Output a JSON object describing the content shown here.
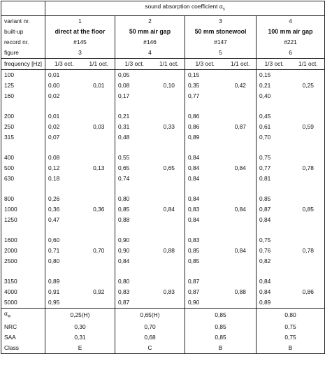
{
  "header": {
    "title_main": "sound absorption coefficient α",
    "title_sub": "s",
    "rows": [
      {
        "label": "variant nr.",
        "values": [
          "1",
          "2",
          "3",
          "4"
        ]
      },
      {
        "label": "built-up",
        "values": [
          "direct  at the floor",
          "50 mm air gap",
          "50 mm stonewool",
          "100 mm air gap"
        ]
      },
      {
        "label": "record nr.",
        "values": [
          "#145",
          "#146",
          "#147",
          "#221"
        ]
      },
      {
        "label": "figure",
        "values": [
          "3",
          "4",
          "5",
          "6"
        ]
      }
    ],
    "freq_label": "frequency [Hz]",
    "col_third": "1/3 oct.",
    "col_one": "1/1 oct."
  },
  "groups": [
    {
      "freqs": [
        "100",
        "125",
        "160"
      ],
      "third": [
        [
          "0,01",
          "0,00",
          "0,02"
        ],
        [
          "0,05",
          "0,08",
          "0,17"
        ],
        [
          "0,15",
          "0,35",
          "0,77"
        ],
        [
          "0,15",
          "0,21",
          "0,40"
        ]
      ],
      "one": [
        "0,01",
        "0,10",
        "0,42",
        "0,25"
      ]
    },
    {
      "freqs": [
        "200",
        "250",
        "315"
      ],
      "third": [
        [
          "0,01",
          "0,02",
          "0,07"
        ],
        [
          "0,21",
          "0,31",
          "0,48"
        ],
        [
          "0,86",
          "0,86",
          "0,89"
        ],
        [
          "0,45",
          "0,61",
          "0,70"
        ]
      ],
      "one": [
        "0,03",
        "0,33",
        "0,87",
        "0,59"
      ]
    },
    {
      "freqs": [
        "400",
        "500",
        "630"
      ],
      "third": [
        [
          "0,08",
          "0,12",
          "0,18"
        ],
        [
          "0,55",
          "0,65",
          "0,74"
        ],
        [
          "0,84",
          "0,84",
          "0,84"
        ],
        [
          "0,75",
          "0,77",
          "0,81"
        ]
      ],
      "one": [
        "0,13",
        "0,65",
        "0,84",
        "0,78"
      ]
    },
    {
      "freqs": [
        "800",
        "1000",
        "1250"
      ],
      "third": [
        [
          "0,26",
          "0,36",
          "0,47"
        ],
        [
          "0,80",
          "0,85",
          "0,88"
        ],
        [
          "0,84",
          "0,83",
          "0,84"
        ],
        [
          "0,85",
          "0,87",
          "0,84"
        ]
      ],
      "one": [
        "0,36",
        "0,84",
        "0,84",
        "0,85"
      ]
    },
    {
      "freqs": [
        "1600",
        "2000",
        "2500"
      ],
      "third": [
        [
          "0,60",
          "0,71",
          "0,80"
        ],
        [
          "0,90",
          "0,90",
          "0,84"
        ],
        [
          "0,83",
          "0,85",
          "0,85"
        ],
        [
          "0,75",
          "0,76",
          "0,82"
        ]
      ],
      "one": [
        "0,70",
        "0,88",
        "0,84",
        "0,78"
      ]
    },
    {
      "freqs": [
        "3150",
        "4000",
        "5000"
      ],
      "third": [
        [
          "0,89",
          "0,91",
          "0,95"
        ],
        [
          "0,80",
          "0,83",
          "0,87"
        ],
        [
          "0,87",
          "0,87",
          "0,90"
        ],
        [
          "0,84",
          "0,84",
          "0,89"
        ]
      ],
      "one": [
        "0,92",
        "0,83",
        "0,88",
        "0,86"
      ]
    }
  ],
  "summary": {
    "aw_label": "α",
    "aw_sub": "w",
    "rows": [
      {
        "label": "",
        "values": [
          "0,25(H)",
          "0,65(H)",
          "0,85",
          "0,80"
        ]
      },
      {
        "label": "NRC",
        "values": [
          "0,30",
          "0,70",
          "0,85",
          "0,75"
        ]
      },
      {
        "label": "SAA",
        "values": [
          "0,31",
          "0,68",
          "0,85",
          "0,75"
        ]
      },
      {
        "label": "Class",
        "values": [
          "E",
          "C",
          "B",
          "B"
        ]
      }
    ]
  }
}
